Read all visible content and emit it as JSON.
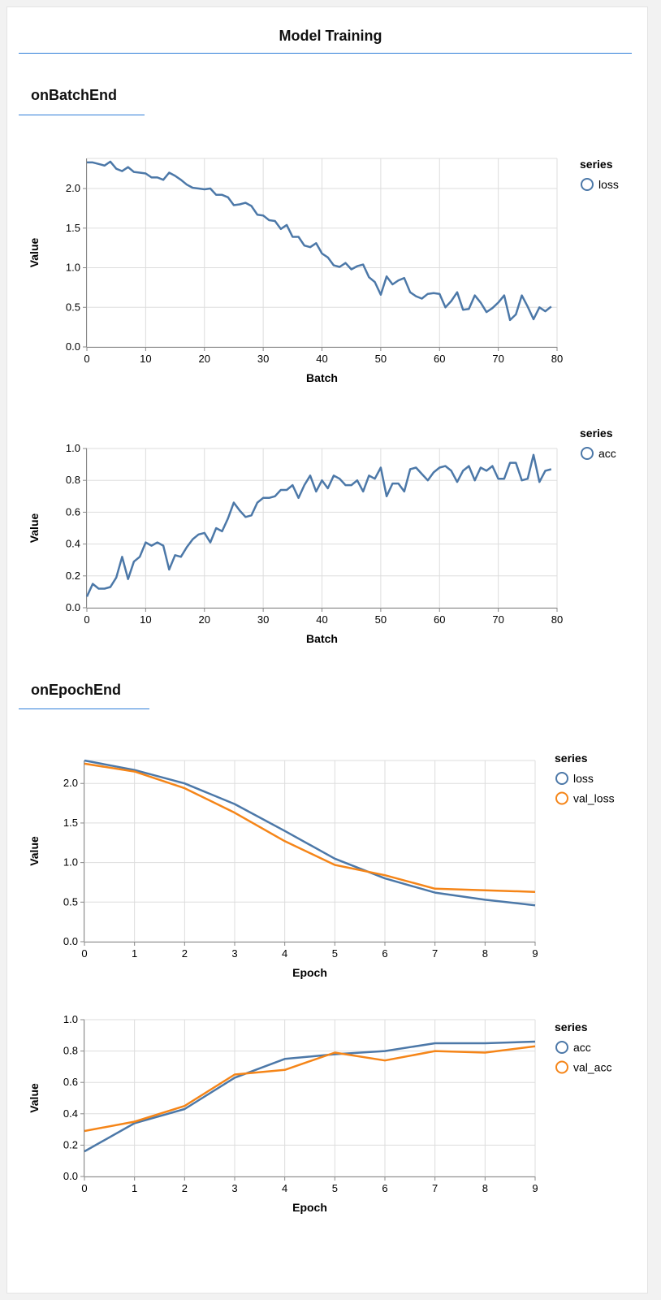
{
  "page": {
    "title": "Model Training"
  },
  "sections": [
    {
      "title": "onBatchEnd"
    },
    {
      "title": "onEpochEnd"
    }
  ],
  "colors": {
    "blue": "#4c78a8",
    "orange": "#f58518",
    "accent": "#2f7ed8"
  },
  "chart_data": [
    {
      "type": "line",
      "xlabel": "Batch",
      "ylabel": "Value",
      "xlim": [
        0,
        80
      ],
      "ylim": [
        0,
        2.38
      ],
      "xticks": [
        0,
        10,
        20,
        30,
        40,
        50,
        60,
        70,
        80
      ],
      "yticks": [
        0.0,
        0.5,
        1.0,
        1.5,
        2.0
      ],
      "ytick_format": 1,
      "grid": true,
      "legend": {
        "title": "series",
        "placement": "right"
      },
      "series": [
        {
          "name": "loss",
          "color": "#4c78a8",
          "x": [
            0,
            1,
            2,
            3,
            4,
            5,
            6,
            7,
            8,
            9,
            10,
            11,
            12,
            13,
            14,
            15,
            16,
            17,
            18,
            19,
            20,
            21,
            22,
            23,
            24,
            25,
            26,
            27,
            28,
            29,
            30,
            31,
            32,
            33,
            34,
            35,
            36,
            37,
            38,
            39,
            40,
            41,
            42,
            43,
            44,
            45,
            46,
            47,
            48,
            49,
            50,
            51,
            52,
            53,
            54,
            55,
            56,
            57,
            58,
            59,
            60,
            61,
            62,
            63,
            64,
            65,
            66,
            67,
            68,
            69,
            70,
            71,
            72,
            73,
            74,
            75,
            76,
            77,
            78,
            79
          ],
          "values": [
            2.33,
            2.33,
            2.31,
            2.29,
            2.34,
            2.25,
            2.22,
            2.27,
            2.21,
            2.2,
            2.19,
            2.14,
            2.14,
            2.11,
            2.2,
            2.16,
            2.11,
            2.05,
            2.01,
            2.0,
            1.99,
            2.0,
            1.92,
            1.92,
            1.89,
            1.79,
            1.8,
            1.82,
            1.78,
            1.67,
            1.66,
            1.6,
            1.59,
            1.49,
            1.54,
            1.39,
            1.39,
            1.28,
            1.26,
            1.31,
            1.18,
            1.13,
            1.03,
            1.01,
            1.06,
            0.98,
            1.02,
            1.04,
            0.88,
            0.82,
            0.66,
            0.89,
            0.79,
            0.84,
            0.87,
            0.69,
            0.64,
            0.61,
            0.67,
            0.68,
            0.67,
            0.5,
            0.58,
            0.69,
            0.47,
            0.48,
            0.65,
            0.56,
            0.44,
            0.49,
            0.56,
            0.65,
            0.34,
            0.41,
            0.65,
            0.51,
            0.35,
            0.5,
            0.45,
            0.51
          ]
        }
      ]
    },
    {
      "type": "line",
      "xlabel": "Batch",
      "ylabel": "Value",
      "xlim": [
        0,
        80
      ],
      "ylim": [
        0,
        1.0
      ],
      "xticks": [
        0,
        10,
        20,
        30,
        40,
        50,
        60,
        70,
        80
      ],
      "yticks": [
        0.0,
        0.2,
        0.4,
        0.6,
        0.8,
        1.0
      ],
      "ytick_format": 1,
      "grid": true,
      "legend": {
        "title": "series",
        "placement": "right"
      },
      "series": [
        {
          "name": "acc",
          "color": "#4c78a8",
          "x": [
            0,
            1,
            2,
            3,
            4,
            5,
            6,
            7,
            8,
            9,
            10,
            11,
            12,
            13,
            14,
            15,
            16,
            17,
            18,
            19,
            20,
            21,
            22,
            23,
            24,
            25,
            26,
            27,
            28,
            29,
            30,
            31,
            32,
            33,
            34,
            35,
            36,
            37,
            38,
            39,
            40,
            41,
            42,
            43,
            44,
            45,
            46,
            47,
            48,
            49,
            50,
            51,
            52,
            53,
            54,
            55,
            56,
            57,
            58,
            59,
            60,
            61,
            62,
            63,
            64,
            65,
            66,
            67,
            68,
            69,
            70,
            71,
            72,
            73,
            74,
            75,
            76,
            77,
            78,
            79
          ],
          "values": [
            0.07,
            0.15,
            0.12,
            0.12,
            0.13,
            0.19,
            0.32,
            0.18,
            0.29,
            0.32,
            0.41,
            0.39,
            0.41,
            0.39,
            0.24,
            0.33,
            0.32,
            0.38,
            0.43,
            0.46,
            0.47,
            0.41,
            0.5,
            0.48,
            0.56,
            0.66,
            0.61,
            0.57,
            0.58,
            0.66,
            0.69,
            0.69,
            0.7,
            0.74,
            0.74,
            0.77,
            0.69,
            0.77,
            0.83,
            0.73,
            0.8,
            0.75,
            0.83,
            0.81,
            0.77,
            0.77,
            0.8,
            0.73,
            0.83,
            0.81,
            0.88,
            0.7,
            0.78,
            0.78,
            0.73,
            0.87,
            0.88,
            0.84,
            0.8,
            0.85,
            0.88,
            0.89,
            0.86,
            0.79,
            0.86,
            0.89,
            0.8,
            0.88,
            0.86,
            0.89,
            0.81,
            0.81,
            0.91,
            0.91,
            0.8,
            0.81,
            0.96,
            0.79,
            0.86,
            0.87
          ]
        }
      ]
    },
    {
      "type": "line",
      "xlabel": "Epoch",
      "ylabel": "Value",
      "xlim": [
        0,
        9
      ],
      "ylim": [
        0,
        2.29
      ],
      "xticks": [
        0,
        1,
        2,
        3,
        4,
        5,
        6,
        7,
        8,
        9
      ],
      "yticks": [
        0.0,
        0.5,
        1.0,
        1.5,
        2.0
      ],
      "ytick_format": 1,
      "grid": true,
      "legend": {
        "title": "series",
        "placement": "right"
      },
      "series": [
        {
          "name": "loss",
          "color": "#4c78a8",
          "x": [
            0,
            1,
            2,
            3,
            4,
            5,
            6,
            7,
            8,
            9
          ],
          "values": [
            2.29,
            2.17,
            2.0,
            1.74,
            1.4,
            1.05,
            0.8,
            0.62,
            0.53,
            0.46
          ]
        },
        {
          "name": "val_loss",
          "color": "#f58518",
          "x": [
            0,
            1,
            2,
            3,
            4,
            5,
            6,
            7,
            8,
            9
          ],
          "values": [
            2.25,
            2.15,
            1.94,
            1.63,
            1.27,
            0.97,
            0.84,
            0.67,
            0.65,
            0.63
          ]
        }
      ]
    },
    {
      "type": "line",
      "xlabel": "Epoch",
      "ylabel": "Value",
      "xlim": [
        0,
        9
      ],
      "ylim": [
        0,
        1.0
      ],
      "xticks": [
        0,
        1,
        2,
        3,
        4,
        5,
        6,
        7,
        8,
        9
      ],
      "yticks": [
        0.0,
        0.2,
        0.4,
        0.6,
        0.8,
        1.0
      ],
      "ytick_format": 1,
      "grid": true,
      "legend": {
        "title": "series",
        "placement": "right"
      },
      "series": [
        {
          "name": "acc",
          "color": "#4c78a8",
          "x": [
            0,
            1,
            2,
            3,
            4,
            5,
            6,
            7,
            8,
            9
          ],
          "values": [
            0.16,
            0.34,
            0.43,
            0.63,
            0.75,
            0.78,
            0.8,
            0.85,
            0.85,
            0.86
          ]
        },
        {
          "name": "val_acc",
          "color": "#f58518",
          "x": [
            0,
            1,
            2,
            3,
            4,
            5,
            6,
            7,
            8,
            9
          ],
          "values": [
            0.29,
            0.35,
            0.45,
            0.65,
            0.68,
            0.79,
            0.74,
            0.8,
            0.79,
            0.83
          ]
        }
      ]
    }
  ]
}
